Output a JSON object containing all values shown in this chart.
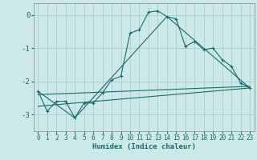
{
  "title": "",
  "xlabel": "Humidex (Indice chaleur)",
  "ylabel": "",
  "bg_color": "#cde8e8",
  "line_color": "#1a6b6b",
  "grid_color": "#aacfcf",
  "xlim": [
    -0.5,
    23.5
  ],
  "ylim": [
    -3.5,
    0.35
  ],
  "yticks": [
    0,
    -1,
    -2,
    -3
  ],
  "xticks": [
    0,
    1,
    2,
    3,
    4,
    5,
    6,
    7,
    8,
    9,
    10,
    11,
    12,
    13,
    14,
    15,
    16,
    17,
    18,
    19,
    20,
    21,
    22,
    23
  ],
  "line1_x": [
    0,
    1,
    2,
    3,
    4,
    5,
    6,
    7,
    8,
    9,
    10,
    11,
    12,
    13,
    14,
    15,
    16,
    17,
    18,
    19,
    20,
    21,
    22,
    23
  ],
  "line1_y": [
    -2.3,
    -2.9,
    -2.6,
    -2.6,
    -3.1,
    -2.65,
    -2.65,
    -2.35,
    -1.95,
    -1.85,
    -0.55,
    -0.45,
    0.08,
    0.12,
    -0.05,
    -0.12,
    -0.95,
    -0.8,
    -1.05,
    -1.0,
    -1.35,
    -1.55,
    -2.05,
    -2.2
  ],
  "line2_x": [
    0,
    4,
    14,
    23
  ],
  "line2_y": [
    -2.3,
    -3.1,
    -0.05,
    -2.2
  ],
  "line3_x": [
    0,
    23
  ],
  "line3_y": [
    -2.4,
    -2.15
  ],
  "line4_x": [
    0,
    23
  ],
  "line4_y": [
    -2.75,
    -2.2
  ]
}
